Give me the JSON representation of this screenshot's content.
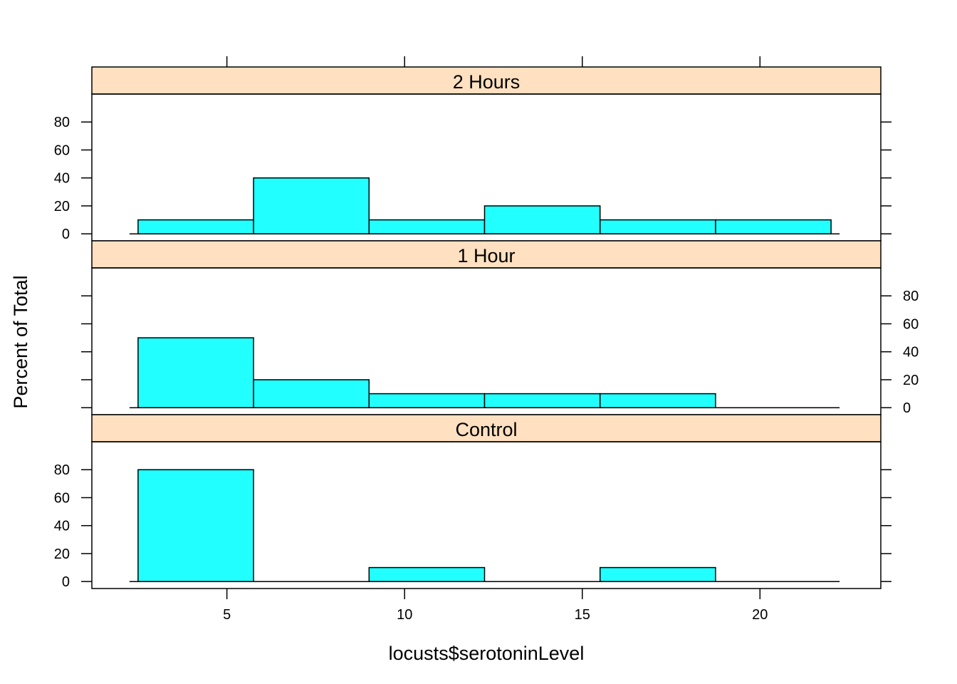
{
  "chart_data": {
    "type": "bar",
    "xlabel": "locusts$serotoninLevel",
    "ylabel": "Percent of Total",
    "xlim": [
      1.2,
      23.4
    ],
    "ylim": [
      -5,
      100
    ],
    "x_ticks": [
      5,
      10,
      15,
      20
    ],
    "x_tick_labels": [
      "5",
      "10",
      "15",
      "20"
    ],
    "y_ticks": [
      0,
      20,
      40,
      60,
      80
    ],
    "y_tick_labels": [
      "0",
      "20",
      "40",
      "60",
      "80"
    ],
    "bin_edges": [
      2.5,
      5.75,
      9.0,
      12.25,
      15.5,
      18.75,
      22.0
    ],
    "strip_color": "#ffe0c0",
    "bar_color": "#22ffff",
    "panels": [
      {
        "name": "Control",
        "values": [
          80,
          0,
          10,
          0,
          10,
          0
        ]
      },
      {
        "name": "1 Hour",
        "values": [
          50,
          20,
          10,
          10,
          10,
          0
        ]
      },
      {
        "name": "2 Hours",
        "values": [
          10,
          40,
          10,
          20,
          10,
          10
        ]
      }
    ],
    "grid": false,
    "legend": "none"
  }
}
